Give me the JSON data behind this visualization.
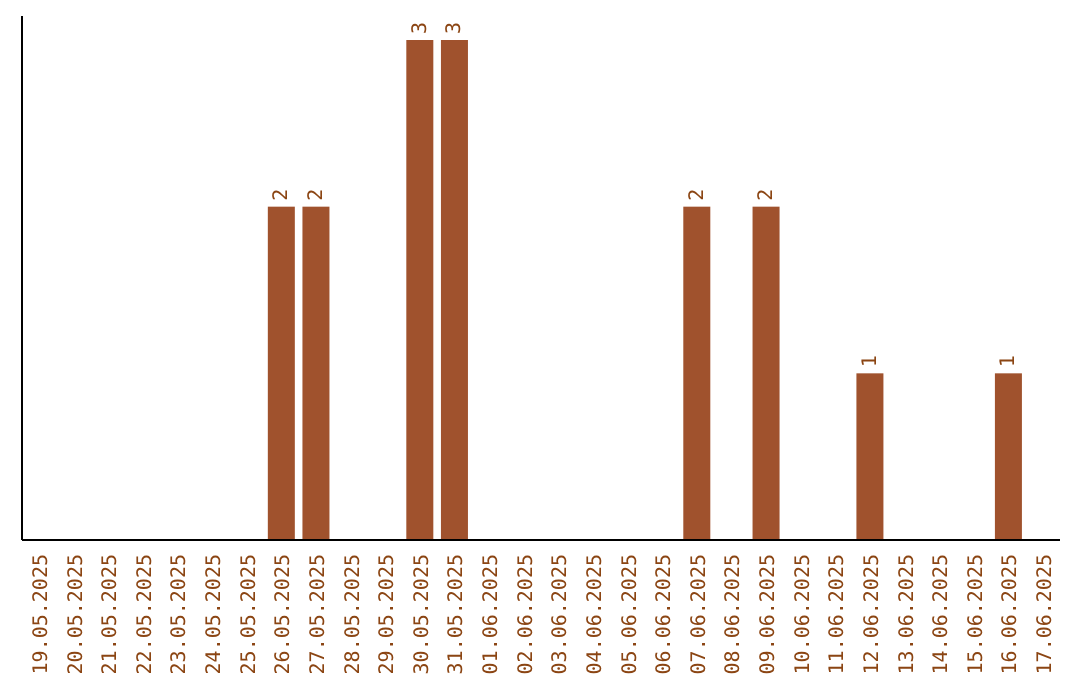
{
  "chart_data": {
    "type": "bar",
    "categories": [
      "19.05.2025",
      "20.05.2025",
      "21.05.2025",
      "22.05.2025",
      "23.05.2025",
      "24.05.2025",
      "25.05.2025",
      "26.05.2025",
      "27.05.2025",
      "28.05.2025",
      "29.05.2025",
      "30.05.2025",
      "31.05.2025",
      "01.06.2025",
      "02.06.2025",
      "03.06.2025",
      "04.06.2025",
      "05.06.2025",
      "06.06.2025",
      "07.06.2025",
      "08.06.2025",
      "09.06.2025",
      "10.06.2025",
      "11.06.2025",
      "12.06.2025",
      "13.06.2025",
      "14.06.2025",
      "15.06.2025",
      "16.06.2025",
      "17.06.2025"
    ],
    "values": [
      0,
      0,
      0,
      0,
      0,
      0,
      0,
      2,
      2,
      0,
      0,
      3,
      3,
      0,
      0,
      0,
      0,
      0,
      0,
      2,
      0,
      2,
      0,
      0,
      1,
      0,
      0,
      0,
      1,
      0
    ],
    "value_labels": [
      null,
      null,
      null,
      null,
      null,
      null,
      null,
      "2",
      "2",
      null,
      null,
      "3",
      "3",
      null,
      null,
      null,
      null,
      null,
      null,
      "2",
      null,
      "2",
      null,
      null,
      "1",
      null,
      null,
      null,
      "1",
      null
    ],
    "color": "#a0522d",
    "relative": false
  }
}
